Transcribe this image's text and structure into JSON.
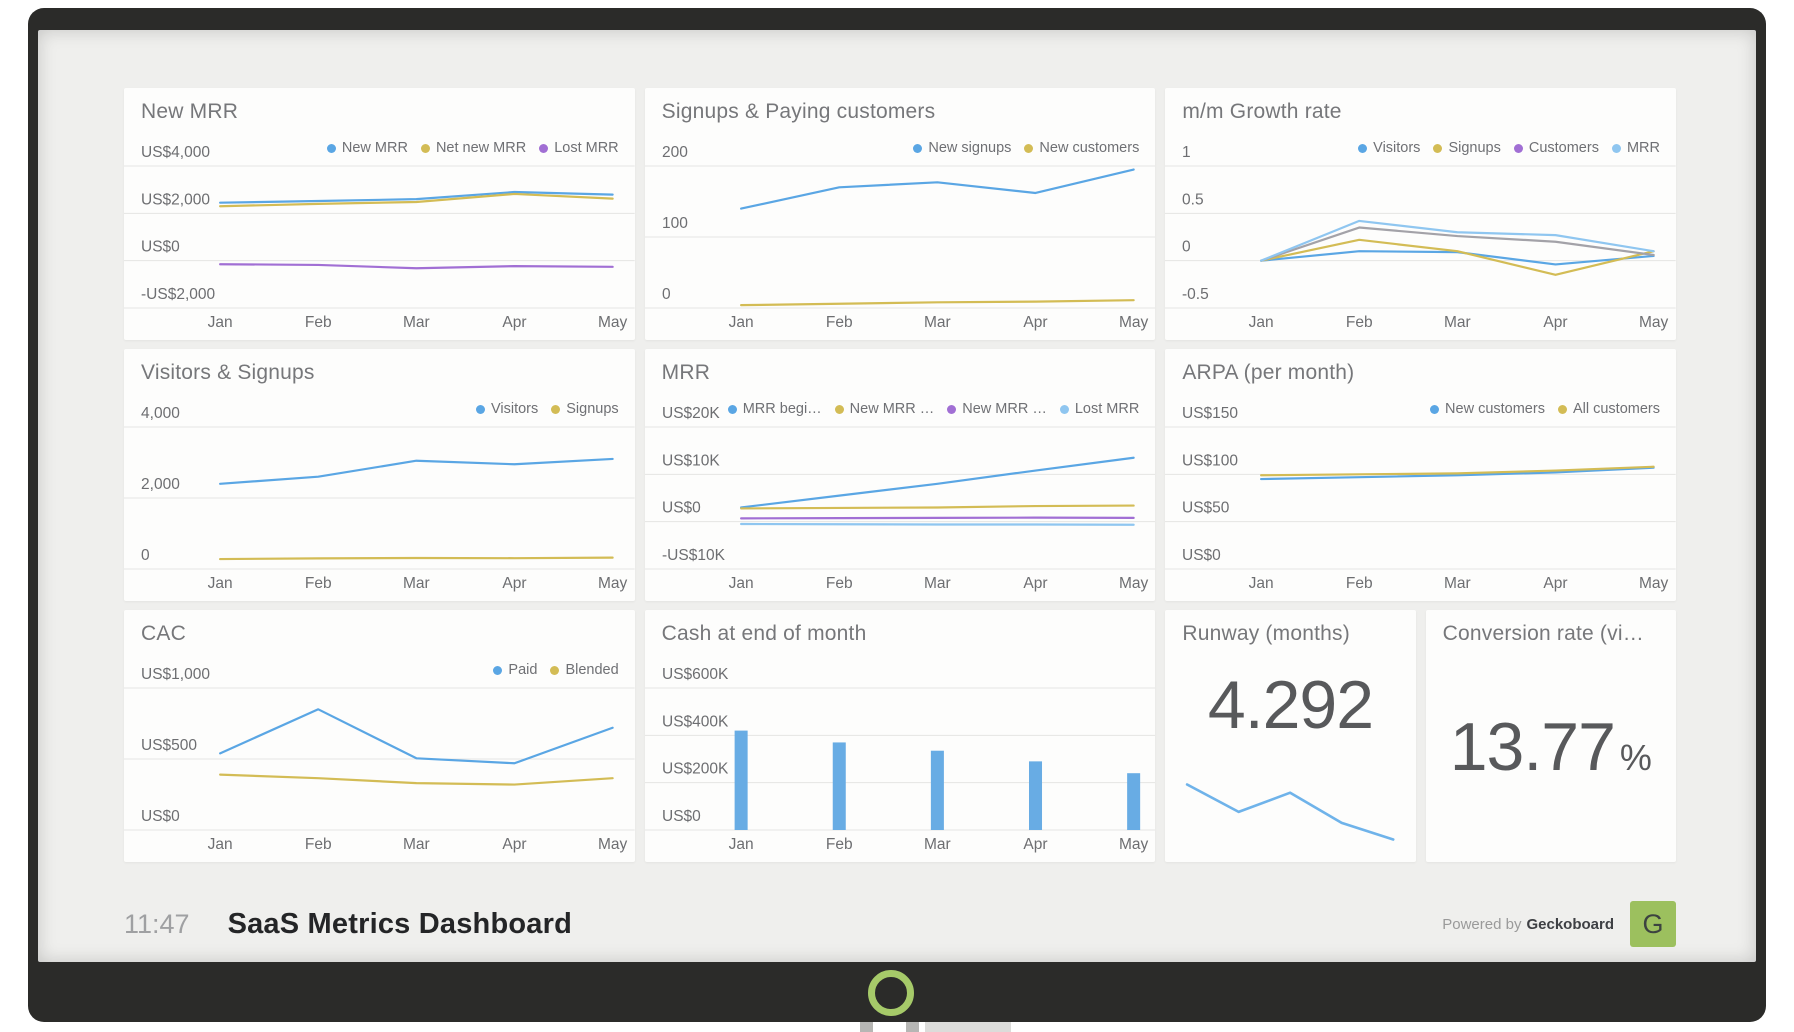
{
  "footer": {
    "time": "11:47",
    "title": "SaaS Metrics Dashboard",
    "powered_by": "Powered by",
    "brand": "Geckoboard",
    "logo_letter": "G"
  },
  "colors": {
    "blue": "#5aa6e4",
    "yellow": "#d3bc55",
    "purple": "#a16fd4",
    "light_blue": "#8fc6f0",
    "gray_purple": "#a3a2a8",
    "bar_blue": "#68ace4",
    "spark_blue": "#6fb3ea",
    "grid": "#e5e5e3",
    "accent_green": "#9cc05e",
    "ring_green": "#a6ca69"
  },
  "chart_data": [
    {
      "id": "new-mrr",
      "type": "line",
      "title": "New MRR",
      "categories": [
        "Jan",
        "Feb",
        "Mar",
        "Apr",
        "May"
      ],
      "ticks": {
        "labels": [
          "US$4,000",
          "US$2,000",
          "US$0",
          "-US$2,000"
        ],
        "values": [
          4000,
          2000,
          0,
          -2000
        ]
      },
      "series": [
        {
          "name": "New MRR",
          "color": "blue",
          "values": [
            2450,
            2520,
            2600,
            2900,
            2790
          ]
        },
        {
          "name": "Net new MRR",
          "color": "yellow",
          "values": [
            2300,
            2400,
            2480,
            2820,
            2620
          ]
        },
        {
          "name": "Lost MRR",
          "color": "purple",
          "values": [
            -150,
            -180,
            -320,
            -230,
            -260
          ]
        }
      ]
    },
    {
      "id": "signups-paying",
      "type": "line",
      "title": "Signups & Paying customers",
      "categories": [
        "Jan",
        "Feb",
        "Mar",
        "Apr",
        "May"
      ],
      "ticks": {
        "labels": [
          "200",
          "100",
          "0"
        ],
        "values": [
          200,
          100,
          0
        ]
      },
      "series": [
        {
          "name": "New signups",
          "color": "blue",
          "values": [
            140,
            170,
            177,
            162,
            195
          ]
        },
        {
          "name": "New customers",
          "color": "yellow",
          "values": [
            4,
            6,
            8,
            9,
            11
          ]
        }
      ]
    },
    {
      "id": "mm-growth-rate",
      "type": "line",
      "title": "m/m Growth rate",
      "categories": [
        "Jan",
        "Feb",
        "Mar",
        "Apr",
        "May"
      ],
      "ticks": {
        "labels": [
          "1",
          "0.5",
          "0",
          "-0.5"
        ],
        "values": [
          1,
          0.5,
          0,
          -0.5
        ]
      },
      "series": [
        {
          "name": "Visitors",
          "color": "blue",
          "values": [
            0,
            0.1,
            0.09,
            -0.04,
            0.05
          ]
        },
        {
          "name": "Signups",
          "color": "yellow",
          "values": [
            0,
            0.22,
            0.1,
            -0.15,
            0.1
          ]
        },
        {
          "name": "Customers",
          "color": "gray_purple",
          "legend_color": "purple",
          "values": [
            0,
            0.35,
            0.26,
            0.2,
            0.06
          ]
        },
        {
          "name": "MRR",
          "color": "light_blue",
          "values": [
            0,
            0.42,
            0.3,
            0.27,
            0.1
          ]
        }
      ]
    },
    {
      "id": "visitors-signups",
      "type": "line",
      "title": "Visitors & Signups",
      "categories": [
        "Jan",
        "Feb",
        "Mar",
        "Apr",
        "May"
      ],
      "ticks": {
        "labels": [
          "4,000",
          "2,000",
          "0"
        ],
        "values": [
          4000,
          2000,
          0
        ]
      },
      "series": [
        {
          "name": "Visitors",
          "color": "blue",
          "values": [
            2400,
            2600,
            3050,
            2950,
            3100
          ]
        },
        {
          "name": "Signups",
          "color": "yellow",
          "values": [
            280,
            300,
            310,
            305,
            320
          ]
        }
      ]
    },
    {
      "id": "mrr",
      "type": "line",
      "title": "MRR",
      "categories": [
        "Jan",
        "Feb",
        "Mar",
        "Apr",
        "May"
      ],
      "ticks": {
        "labels": [
          "US$20K",
          "US$10K",
          "US$0",
          "-US$10K"
        ],
        "values": [
          20000,
          10000,
          0,
          -10000
        ]
      },
      "series": [
        {
          "name": "MRR begi…",
          "color": "blue",
          "values": [
            3000,
            5500,
            8000,
            10800,
            13500
          ]
        },
        {
          "name": "New MRR …",
          "color": "yellow",
          "values": [
            2800,
            2900,
            3000,
            3300,
            3400
          ]
        },
        {
          "name": "New MRR …",
          "color": "purple",
          "values": [
            700,
            750,
            800,
            850,
            800
          ]
        },
        {
          "name": "Lost MRR",
          "color": "light_blue",
          "values": [
            -500,
            -550,
            -600,
            -600,
            -650
          ]
        }
      ]
    },
    {
      "id": "arpa",
      "type": "line",
      "title": "ARPA (per month)",
      "categories": [
        "Jan",
        "Feb",
        "Mar",
        "Apr",
        "May"
      ],
      "ticks": {
        "labels": [
          "US$150",
          "US$100",
          "US$50",
          "US$0"
        ],
        "values": [
          150,
          100,
          50,
          0
        ]
      },
      "series": [
        {
          "name": "New customers",
          "color": "blue",
          "values": [
            95,
            97,
            99,
            102,
            107
          ]
        },
        {
          "name": "All customers",
          "color": "yellow",
          "values": [
            99,
            100,
            101,
            104,
            108
          ]
        }
      ]
    },
    {
      "id": "cac",
      "type": "line",
      "title": "CAC",
      "categories": [
        "Jan",
        "Feb",
        "Mar",
        "Apr",
        "May"
      ],
      "ticks": {
        "labels": [
          "US$1,000",
          "US$500",
          "US$0"
        ],
        "values": [
          1000,
          500,
          0
        ]
      },
      "series": [
        {
          "name": "Paid",
          "color": "blue",
          "values": [
            540,
            850,
            505,
            470,
            720
          ]
        },
        {
          "name": "Blended",
          "color": "yellow",
          "values": [
            390,
            365,
            330,
            320,
            365
          ]
        }
      ]
    },
    {
      "id": "cash-end-of-month",
      "type": "bar",
      "title": "Cash at end of month",
      "categories": [
        "Jan",
        "Feb",
        "Mar",
        "Apr",
        "May"
      ],
      "ticks": {
        "labels": [
          "US$600K",
          "US$400K",
          "US$200K",
          "US$0"
        ],
        "values": [
          600,
          400,
          200,
          0
        ]
      },
      "series": [
        {
          "name": "Cash",
          "color": "bar_blue",
          "values": [
            420,
            370,
            335,
            290,
            240
          ]
        }
      ]
    },
    {
      "id": "runway",
      "type": "number",
      "title": "Runway (months)",
      "value": "4.292",
      "sparkline": {
        "color": "spark_blue",
        "values": [
          6.3,
          5.3,
          6.0,
          4.9,
          4.292
        ]
      }
    },
    {
      "id": "conversion-rate",
      "type": "number",
      "title": "Conversion rate (vi…",
      "value": "13.77",
      "unit": "%"
    }
  ]
}
